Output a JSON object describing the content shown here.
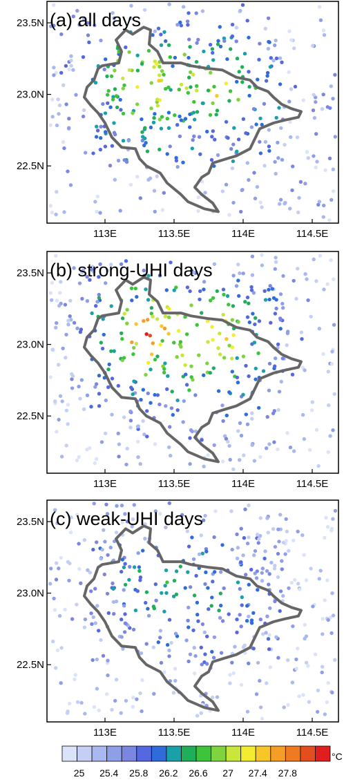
{
  "panels": [
    {
      "title": "(a) all days"
    },
    {
      "title": "(b) strong-UHI days"
    },
    {
      "title": "(c) weak-UHI days"
    }
  ],
  "x_ticks": [
    "113E",
    "113.5E",
    "114E",
    "114.5E"
  ],
  "y_ticks": [
    "23.5N",
    "23.0N",
    "22.5N"
  ],
  "colorbar": {
    "labels": [
      "25",
      "25.4",
      "25.8",
      "26.2",
      "26.6",
      "27",
      "27.4",
      "27.8"
    ],
    "unit": "°C",
    "colors": [
      "#dbe3f8",
      "#c4cff3",
      "#a9b8ee",
      "#8e9fe8",
      "#7a86df",
      "#5468e0",
      "#2f6cd9",
      "#1aa0a8",
      "#1fae5a",
      "#3ec43a",
      "#7ed33e",
      "#c9e63a",
      "#f3ec30",
      "#f7c72a",
      "#f59e26",
      "#f07a22",
      "#e64d1e",
      "#e01e1e"
    ]
  },
  "chart_data": {
    "type": "scatter",
    "x_ticks": [
      113.0,
      113.5,
      114.0,
      114.5
    ],
    "y_ticks": [
      22.5,
      23.0,
      23.5
    ],
    "xlim": [
      112.58,
      114.69
    ],
    "ylim": [
      22.1,
      23.65
    ],
    "color_scale": {
      "min": 25,
      "max": 27.8,
      "step": 0.2,
      "unit": "°C"
    },
    "series": [
      {
        "panel": "(a) all days",
        "note": "station temperatures shown as colored dots"
      },
      {
        "panel": "(b) strong-UHI days",
        "note": "station temperatures shown as colored dots"
      },
      {
        "panel": "(c) weak-UHI days",
        "note": "station temperatures shown as colored dots"
      }
    ]
  }
}
